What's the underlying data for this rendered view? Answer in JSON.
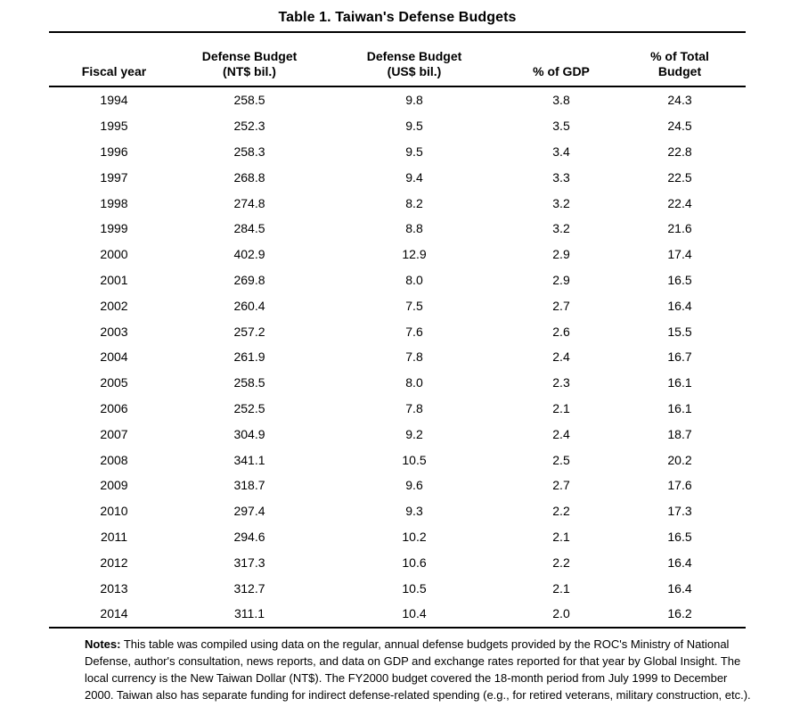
{
  "page": {
    "title": "Table 1. Taiwan's Defense Budgets"
  },
  "chart_data": {
    "type": "table",
    "title": "Table 1. Taiwan's Defense Budgets",
    "columns": [
      "Fiscal year",
      "Defense Budget (NT$ bil.)",
      "Defense Budget (US$ bil.)",
      "% of GDP",
      "% of Total Budget"
    ],
    "rows": [
      [
        "1994",
        "258.5",
        "9.8",
        "3.8",
        "24.3"
      ],
      [
        "1995",
        "252.3",
        "9.5",
        "3.5",
        "24.5"
      ],
      [
        "1996",
        "258.3",
        "9.5",
        "3.4",
        "22.8"
      ],
      [
        "1997",
        "268.8",
        "9.4",
        "3.3",
        "22.5"
      ],
      [
        "1998",
        "274.8",
        "8.2",
        "3.2",
        "22.4"
      ],
      [
        "1999",
        "284.5",
        "8.8",
        "3.2",
        "21.6"
      ],
      [
        "2000",
        "402.9",
        "12.9",
        "2.9",
        "17.4"
      ],
      [
        "2001",
        "269.8",
        "8.0",
        "2.9",
        "16.5"
      ],
      [
        "2002",
        "260.4",
        "7.5",
        "2.7",
        "16.4"
      ],
      [
        "2003",
        "257.2",
        "7.6",
        "2.6",
        "15.5"
      ],
      [
        "2004",
        "261.9",
        "7.8",
        "2.4",
        "16.7"
      ],
      [
        "2005",
        "258.5",
        "8.0",
        "2.3",
        "16.1"
      ],
      [
        "2006",
        "252.5",
        "7.8",
        "2.1",
        "16.1"
      ],
      [
        "2007",
        "304.9",
        "9.2",
        "2.4",
        "18.7"
      ],
      [
        "2008",
        "341.1",
        "10.5",
        "2.5",
        "20.2"
      ],
      [
        "2009",
        "318.7",
        "9.6",
        "2.7",
        "17.6"
      ],
      [
        "2010",
        "297.4",
        "9.3",
        "2.2",
        "17.3"
      ],
      [
        "2011",
        "294.6",
        "10.2",
        "2.1",
        "16.5"
      ],
      [
        "2012",
        "317.3",
        "10.6",
        "2.2",
        "16.4"
      ],
      [
        "2013",
        "312.7",
        "10.5",
        "2.1",
        "16.4"
      ],
      [
        "2014",
        "311.1",
        "10.4",
        "2.0",
        "16.2"
      ]
    ]
  },
  "table": {
    "headers": [
      {
        "lines": [
          "Fiscal year"
        ]
      },
      {
        "lines": [
          "Defense Budget",
          "(NT$ bil.)"
        ]
      },
      {
        "lines": [
          "Defense Budget",
          "(US$ bil.)"
        ]
      },
      {
        "lines": [
          "% of GDP"
        ]
      },
      {
        "lines": [
          "% of Total",
          "Budget"
        ]
      }
    ]
  },
  "notes": {
    "label": "Notes:",
    "text": "This table was compiled using data on the regular, annual defense budgets provided by the ROC's Ministry of National Defense, author's consultation, news reports, and data on GDP and exchange rates reported for that year by Global Insight. The local currency is the New Taiwan Dollar (NT$). The FY2000 budget covered the 18-month period from July 1999 to December 2000. Taiwan also has separate funding for indirect defense-related spending (e.g., for retired veterans, military construction, etc.)."
  }
}
